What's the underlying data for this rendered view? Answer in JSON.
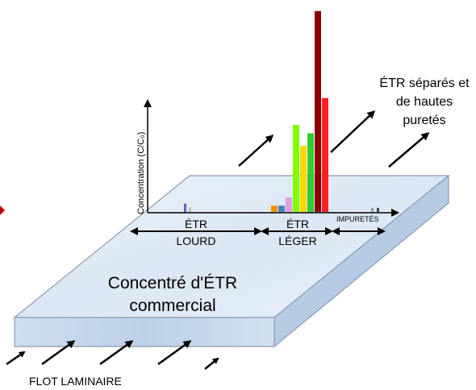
{
  "labels": {
    "concentrate": [
      "Concentré d'ÉTR",
      "commercial"
    ],
    "flow": "FLOT LAMINAIRE",
    "separated": [
      "ÉTR séparés et",
      "de hautes",
      "puretés"
    ],
    "heavy": [
      "ÉTR",
      "LOURD"
    ],
    "light": [
      "ÉTR",
      "LÉGER"
    ],
    "impurities": "IMPURETÉS",
    "y_axis": "Concentration (C/C₀)"
  },
  "chart_data": {
    "type": "bar",
    "title": "",
    "xlabel": "",
    "ylabel": "Concentration (C/C₀)",
    "ylim": [
      0,
      1
    ],
    "groups": [
      {
        "name": "ÉTR LOURD",
        "colors": [
          "#6a5acd",
          "#c0c0c0"
        ],
        "values": [
          0.04,
          0.02
        ]
      },
      {
        "name": "ÉTR LÉGER",
        "colors": [
          "#ff8c00",
          "#4682b4",
          "#dda0dd",
          "#7fff00",
          "#ffd700",
          "#32cd32",
          "#8b0000",
          "#ff2020"
        ],
        "values": [
          0.03,
          0.03,
          0.07,
          0.42,
          0.32,
          0.38,
          0.97,
          0.55
        ]
      },
      {
        "name": "IMPURETÉS",
        "colors": [
          "#999999",
          "#444444"
        ],
        "values": [
          0.02,
          0.02
        ]
      }
    ]
  },
  "colors": {
    "slab_top": "#dfe9f6",
    "slab_front": "#c6d8ee",
    "slab_side": "#b5c9e3",
    "outline": "#7f8fa6",
    "marker": "#c00000"
  }
}
